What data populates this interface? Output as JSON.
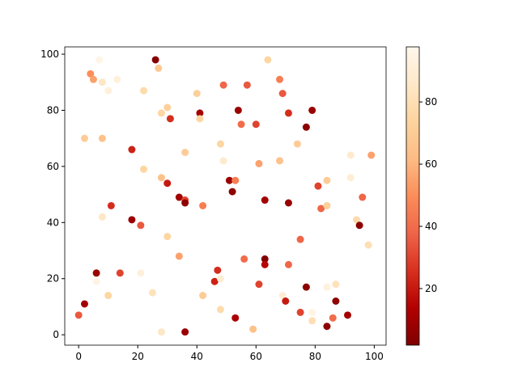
{
  "chart_data": {
    "type": "scatter",
    "x": [
      0,
      2,
      6,
      6,
      14,
      10,
      11,
      8,
      18,
      21,
      21,
      25,
      28,
      36,
      30,
      34,
      34,
      36,
      36,
      30,
      28,
      22,
      2,
      8,
      18,
      36,
      42,
      42,
      46,
      47,
      48,
      48,
      53,
      56,
      59,
      61,
      63,
      63,
      63,
      69,
      70,
      71,
      71,
      75,
      75,
      77,
      79,
      79,
      84,
      84,
      87,
      87,
      86,
      91,
      82,
      81,
      84,
      84,
      92,
      92,
      99,
      94,
      95,
      96,
      98,
      74,
      68,
      61,
      51,
      53,
      52,
      48,
      49,
      54,
      55,
      60,
      57,
      49,
      41,
      41,
      40,
      31,
      30,
      28,
      27,
      26,
      22,
      13,
      10,
      8,
      7,
      4,
      5,
      64,
      68,
      69,
      71,
      79,
      77
    ],
    "y": [
      7,
      11,
      22,
      19,
      22,
      14,
      46,
      42,
      41,
      39,
      22,
      15,
      1,
      1,
      35,
      28,
      49,
      48,
      47,
      54,
      56,
      59,
      70,
      70,
      66,
      65,
      46,
      14,
      19,
      23,
      20,
      9,
      6,
      27,
      2,
      18,
      27,
      25,
      48,
      14,
      12,
      25,
      47,
      34,
      8,
      17,
      8,
      5,
      3,
      17,
      18,
      12,
      6,
      7,
      45,
      53,
      46,
      55,
      56,
      64,
      64,
      41,
      39,
      49,
      32,
      68,
      62,
      61,
      55,
      55,
      51,
      68,
      62,
      80,
      75,
      75,
      89,
      89,
      79,
      77,
      86,
      77,
      81,
      79,
      95,
      98,
      87,
      91,
      87,
      90,
      98,
      93,
      91,
      98,
      91,
      86,
      79,
      80,
      74
    ],
    "c": [
      35,
      10,
      8,
      95,
      30,
      75,
      25,
      85,
      8,
      35,
      92,
      82,
      85,
      8,
      75,
      55,
      10,
      30,
      5,
      20,
      65,
      75,
      70,
      65,
      22,
      70,
      45,
      70,
      22,
      25,
      90,
      78,
      12,
      40,
      65,
      30,
      3,
      15,
      10,
      90,
      20,
      38,
      8,
      38,
      30,
      5,
      95,
      80,
      5,
      93,
      82,
      5,
      40,
      10,
      38,
      30,
      72,
      70,
      90,
      88,
      55,
      78,
      5,
      38,
      80,
      70,
      65,
      55,
      8,
      45,
      5,
      75,
      88,
      8,
      40,
      30,
      35,
      38,
      10,
      75,
      72,
      25,
      72,
      75,
      68,
      3,
      78,
      92,
      92,
      85,
      96,
      50,
      55,
      75,
      45,
      35,
      25,
      8,
      5
    ],
    "colormap": [
      "#7f0000",
      "#b30000",
      "#d7301f",
      "#ef6548",
      "#fc8d59",
      "#fdbb84",
      "#fdd49e",
      "#fee8c8",
      "#fff7ec"
    ],
    "clim": [
      1.8,
      97.7
    ],
    "cticks": [
      20,
      40,
      60,
      80
    ],
    "xlim": [
      -4.7,
      104
    ],
    "ylim": [
      -3.7,
      102.6
    ],
    "xticks": [
      0,
      20,
      40,
      60,
      80,
      100
    ],
    "yticks": [
      0,
      20,
      40,
      60,
      80,
      100
    ]
  }
}
